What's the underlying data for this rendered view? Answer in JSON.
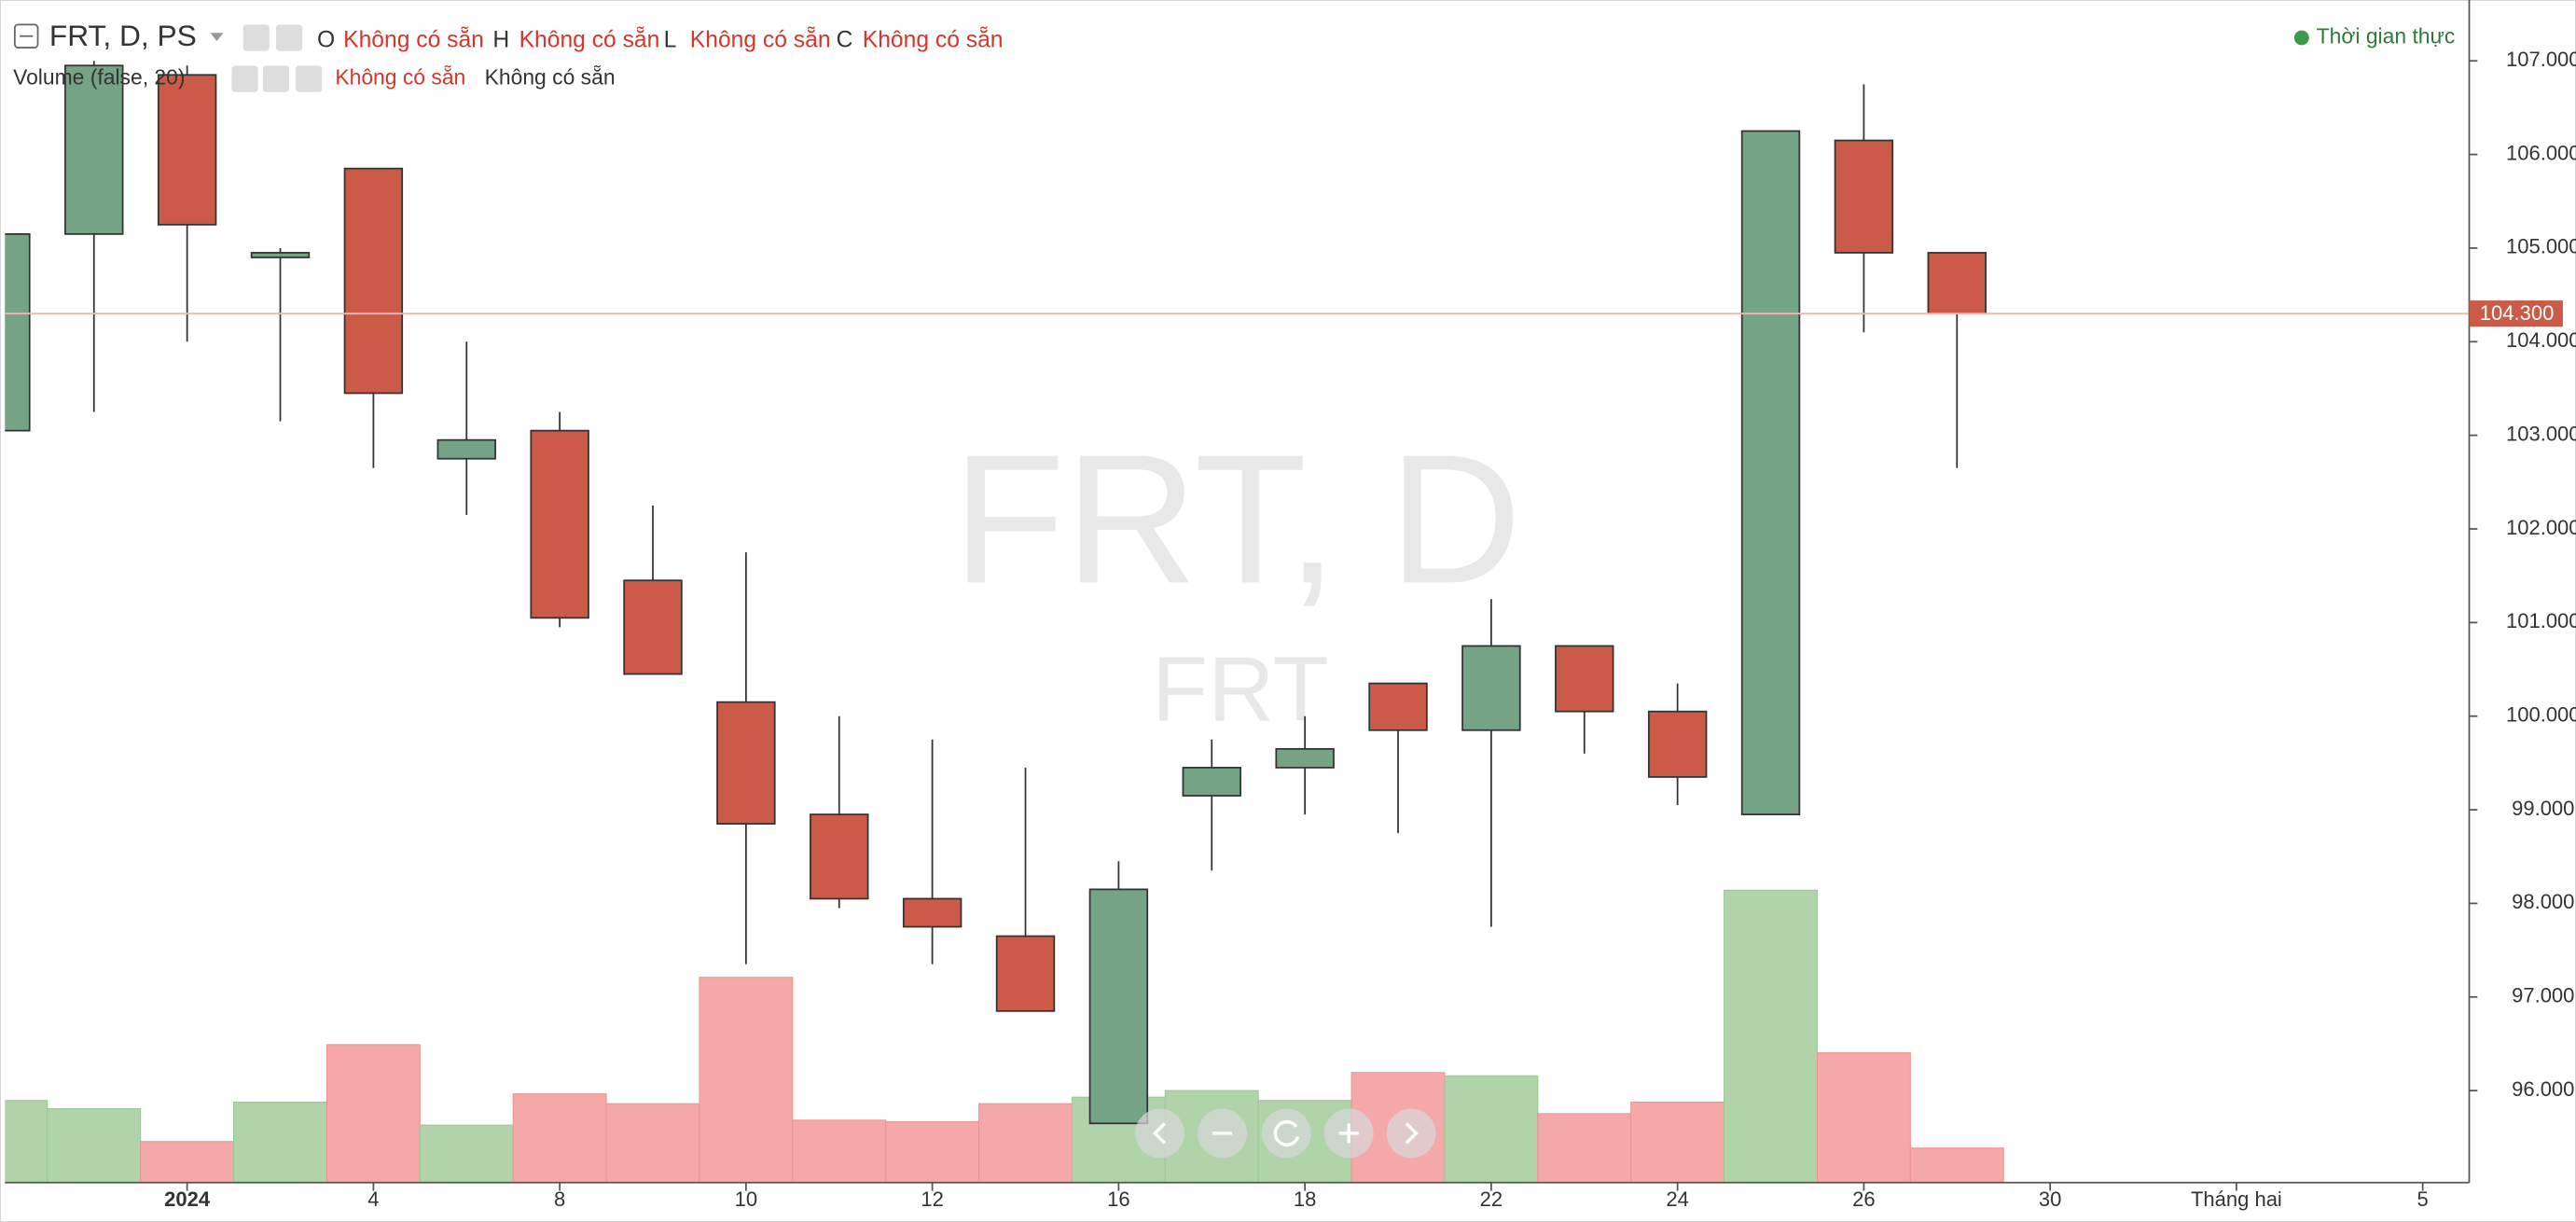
{
  "chart_data": {
    "type": "candlestick",
    "title": "FRT, D, PS",
    "ohlc_legend": [
      {
        "key": "O",
        "value": "Không có sẵn"
      },
      {
        "key": "H",
        "value": "Không có sẵn"
      },
      {
        "key": "L",
        "value": "Không có sẵn"
      },
      {
        "key": "C",
        "value": "Không có sẵn"
      }
    ],
    "volume_title": "Volume (false, 20)",
    "volume_legend": [
      "Không có sẵn",
      "Không có sẵn"
    ],
    "status": "Thời gian thực",
    "watermark": "FRT, D",
    "watermark_symbol": "FRT",
    "categories": [
      null,
      null,
      "2024",
      null,
      "4",
      null,
      "8",
      null,
      "10",
      null,
      "12",
      null,
      "16",
      null,
      "18",
      null,
      "22",
      null,
      "24",
      null,
      "26",
      null,
      "30",
      null,
      "Tháng hai",
      null,
      "5"
    ],
    "open": [
      103050,
      105150,
      106850,
      104900,
      105850,
      102750,
      103050,
      101450,
      100150,
      98950,
      98050,
      97650,
      95650,
      99150,
      99450,
      100350,
      99850,
      100750,
      100050,
      98950,
      106150,
      104950,
      null,
      null,
      null,
      null,
      null
    ],
    "high": [
      105200,
      107000,
      106950,
      105000,
      105850,
      104000,
      103250,
      102250,
      101750,
      100000,
      99750,
      99450,
      98450,
      99750,
      100000,
      100350,
      101250,
      100750,
      100350,
      106250,
      106750,
      104950,
      null,
      null,
      null,
      null,
      null
    ],
    "low": [
      102900,
      103250,
      104000,
      103150,
      102650,
      102150,
      100950,
      100450,
      97350,
      97950,
      97350,
      96850,
      95650,
      98350,
      98950,
      98750,
      97750,
      99600,
      99050,
      98950,
      104100,
      102650,
      null,
      null,
      null,
      null,
      null
    ],
    "close": [
      105150,
      106950,
      105250,
      104950,
      103450,
      102950,
      101050,
      100450,
      98850,
      98050,
      97750,
      96850,
      98150,
      99450,
      99650,
      99850,
      100750,
      100050,
      99350,
      106250,
      104950,
      104300,
      null,
      null,
      null,
      null,
      null
    ],
    "volume": [
      500000,
      450000,
      250000,
      490000,
      840000,
      350000,
      540000,
      480000,
      1250000,
      380000,
      370000,
      480000,
      520000,
      560000,
      500000,
      670000,
      650000,
      420000,
      490000,
      1780000,
      790000,
      210000,
      null,
      null,
      null,
      null,
      null
    ],
    "vlim": [
      0,
      4000000
    ],
    "ylim": [
      95000,
      107650
    ],
    "yticks": [
      {
        "value": 96000,
        "label": "96.000"
      },
      {
        "value": 97000,
        "label": "97.000"
      },
      {
        "value": 98000,
        "label": "98.000"
      },
      {
        "value": 99000,
        "label": "99.000"
      },
      {
        "value": 100000,
        "label": "100.000"
      },
      {
        "value": 101000,
        "label": "101.000"
      },
      {
        "value": 102000,
        "label": "102.000"
      },
      {
        "value": 103000,
        "label": "103.000"
      },
      {
        "value": 104000,
        "label": "104.000"
      },
      {
        "value": 105000,
        "label": "105.000"
      },
      {
        "value": 106000,
        "label": "106.000"
      },
      {
        "value": 107000,
        "label": "107.000"
      }
    ],
    "last_price": {
      "value": 104300,
      "label": "104.300"
    },
    "up_color": "#75a385",
    "down_color": "#cb5a46",
    "up_volume_color": "#b0d3aa",
    "down_volume_color": "#f4a9a8",
    "grid": false
  }
}
